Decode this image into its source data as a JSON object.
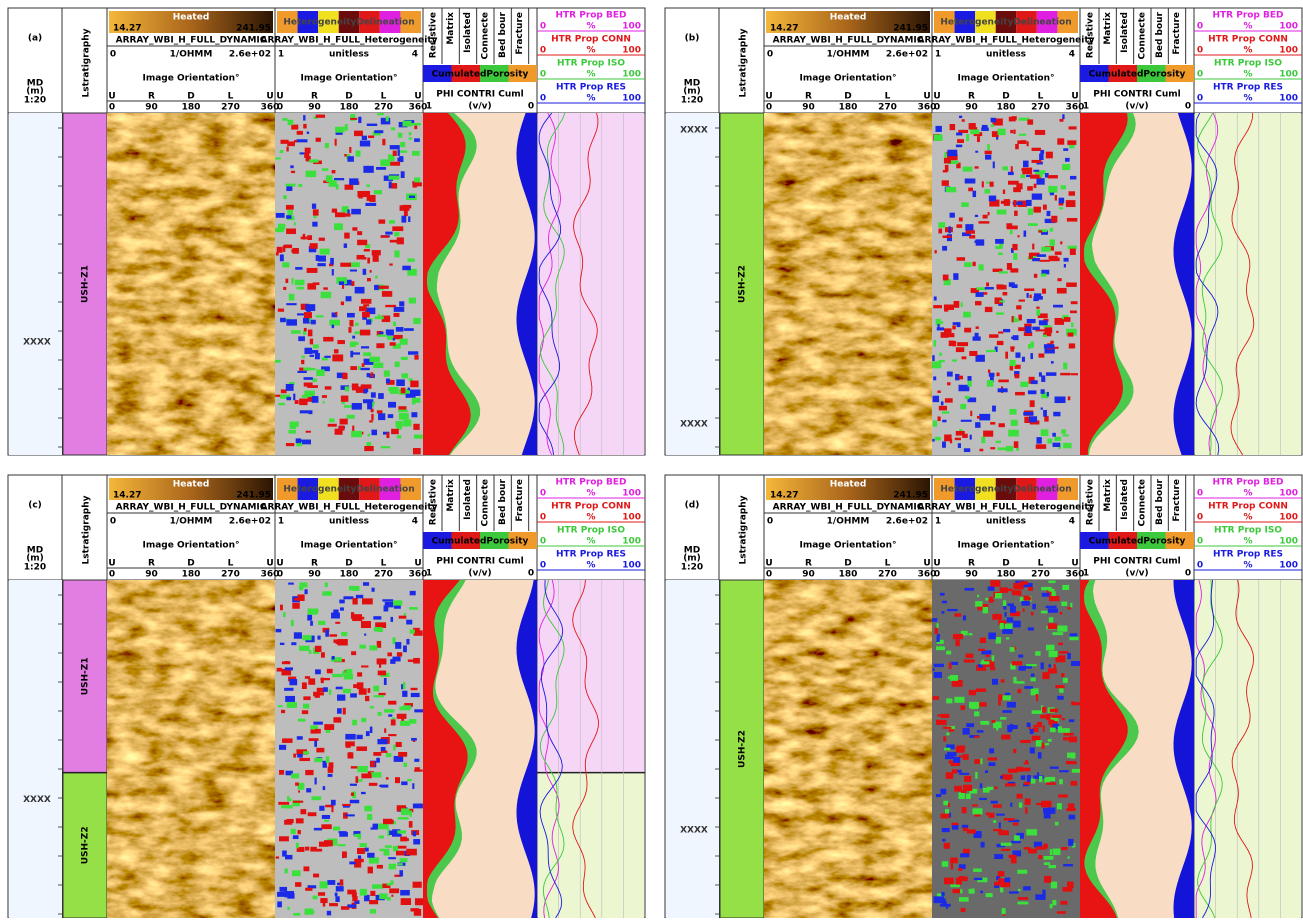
{
  "header": {
    "md": "MD",
    "md_unit": "(m)",
    "scale": "1:20",
    "litho": "Lstratigraphy",
    "image": {
      "title": "Heated",
      "min": "14.27",
      "max": "241.95",
      "curve": "ARRAY_WBI_H_FULL_DYNAMIC",
      "left": "0",
      "unit": "1/OHMM",
      "right": "2.6e+02",
      "orientation": "Image Orientation°",
      "dirs": [
        "U",
        "R",
        "D",
        "L",
        "U"
      ],
      "angles": [
        "0",
        "90",
        "180",
        "270",
        "360"
      ]
    },
    "het": {
      "title": "HeterogeneityDelineation",
      "curve": "ARRAY_WBI_H_FULL_Heterogeneity",
      "left": "1",
      "unit": "unitless",
      "right": "4",
      "orientation": "Image Orientation°",
      "dirs": [
        "U",
        "R",
        "D",
        "L",
        "U"
      ],
      "angles": [
        "0",
        "90",
        "180",
        "270",
        "360"
      ]
    },
    "porosity": {
      "classes": [
        "Resistive",
        "Matrix",
        "Isolated",
        "Connecte",
        "Bed bour",
        "Fracture"
      ],
      "title": "CumulatedPorosity",
      "curve": "PHI CONTRI Cuml",
      "left": "1",
      "unit": "(v/v)",
      "right": "0"
    },
    "htr": [
      {
        "name": "HTR Prop BED",
        "left": "0",
        "unit": "%",
        "right": "100"
      },
      {
        "name": "HTR Prop CONN",
        "left": "0",
        "unit": "%",
        "right": "100"
      },
      {
        "name": "HTR Prop ISO",
        "left": "0",
        "unit": "%",
        "right": "100"
      },
      {
        "name": "HTR Prop RES",
        "left": "0",
        "unit": "%",
        "right": "100"
      }
    ]
  },
  "panels": [
    {
      "label": "(a)",
      "depths": [
        "XXXX"
      ],
      "zones": [
        "USH-Z1"
      ]
    },
    {
      "label": "(b)",
      "depths": [
        "XXXX",
        "XXXX"
      ],
      "zones": [
        "USH-Z2"
      ]
    },
    {
      "label": "(c)",
      "depths": [
        "XXXX"
      ],
      "zones": [
        "USH-Z1",
        "USH-Z2"
      ]
    },
    {
      "label": "(d)",
      "depths": [
        "XXXX"
      ],
      "zones": [
        "USH-Z2"
      ]
    }
  ]
}
